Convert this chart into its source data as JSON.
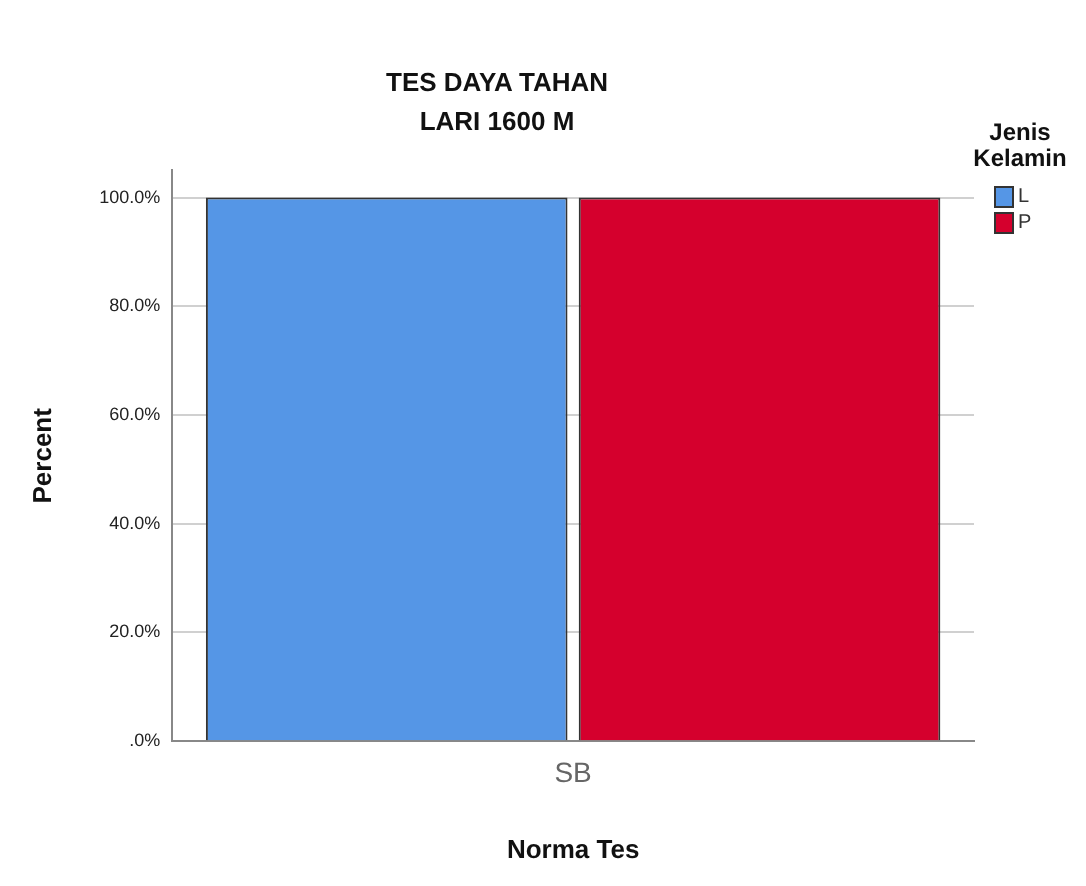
{
  "chart_data": {
    "type": "bar",
    "title": "TES DAYA TAHAN",
    "subtitle": "LARI 1600 M",
    "xlabel": "Norma Tes",
    "ylabel": "Percent",
    "legend_title": "Jenis Kelamin",
    "categories": [
      "SB"
    ],
    "series": [
      {
        "name": "L",
        "color": "#5596e6",
        "values": [
          100
        ]
      },
      {
        "name": "P",
        "color": "#d5002d",
        "values": [
          100
        ]
      }
    ],
    "ylim": [
      0,
      105
    ],
    "yticks": [
      {
        "value": 0,
        "label": ".0%"
      },
      {
        "value": 20,
        "label": "20.0%"
      },
      {
        "value": 40,
        "label": "40.0%"
      },
      {
        "value": 60,
        "label": "60.0%"
      },
      {
        "value": 80,
        "label": "80.0%"
      },
      {
        "value": 100,
        "label": "100.0%"
      }
    ],
    "grid": "y",
    "legend": "top right"
  }
}
